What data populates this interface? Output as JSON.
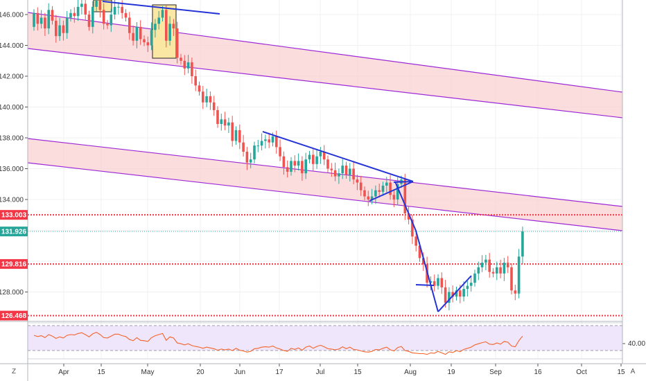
{
  "chart_data": {
    "type": "candlestick",
    "x_tick_labels": [
      "Apr",
      "15",
      "May",
      "20",
      "Jun",
      "17",
      "Jul",
      "15",
      "Aug",
      "19",
      "Sep",
      "16",
      "Oct",
      "15"
    ],
    "y_tick_labels": [
      "146.000",
      "144.000",
      "142.000",
      "140.000",
      "138.000",
      "136.000",
      "134.000",
      "128.000"
    ],
    "ylim": [
      125.95,
      147.0
    ],
    "price_levels": [
      {
        "label": "133.003",
        "value": 133.003,
        "style": "dotted",
        "color": "#f23645"
      },
      {
        "label": "131.926",
        "value": 131.926,
        "style": "current-price",
        "color": "#26a69a"
      },
      {
        "label": "129.816",
        "value": 129.816,
        "style": "dotted",
        "color": "#f23645"
      },
      {
        "label": "126.468",
        "value": 126.468,
        "style": "dotted",
        "color": "#f23645"
      }
    ],
    "colors": {
      "up": "#26a69a",
      "down": "#ef5350",
      "trendline": "#2433d6",
      "channel_line": "#9c27d6",
      "channel_fill": "#fbd1d3",
      "highlight": "#fbe7a4",
      "rsi_line": "#f5632b",
      "rsi_band": "#ede3fb"
    },
    "start_open": 145.2,
    "closes": [
      146.1,
      145.4,
      145.8,
      145.1,
      146.3,
      145.6,
      144.6,
      145.3,
      144.8,
      145.8,
      146.1,
      145.9,
      146.5,
      146.7,
      146.0,
      145.2,
      146.5,
      146.9,
      146.3,
      145.4,
      145.3,
      146.0,
      146.5,
      146.5,
      146.1,
      145.8,
      144.8,
      144.3,
      145.2,
      144.4,
      144.2,
      144.0,
      145.0,
      145.4,
      145.8,
      146.3,
      144.3,
      145.4,
      145.1,
      143.2,
      143.0,
      142.5,
      142.9,
      142.0,
      141.4,
      141.0,
      140.3,
      140.7,
      140.3,
      139.8,
      138.9,
      139.2,
      138.8,
      139.0,
      137.8,
      138.5,
      137.7,
      137.1,
      136.4,
      136.6,
      137.5,
      137.5,
      137.8,
      137.9,
      137.7,
      138.1,
      137.4,
      136.8,
      136.1,
      135.8,
      136.5,
      136.2,
      136.5,
      135.7,
      136.6,
      136.9,
      136.3,
      136.8,
      137.1,
      136.6,
      136.0,
      135.9,
      135.5,
      135.7,
      136.2,
      135.6,
      136.0,
      135.3,
      135.1,
      134.6,
      134.2,
      134.0,
      134.2,
      134.6,
      134.5,
      134.9,
      135.1,
      134.3,
      134.0,
      135.0,
      135.3,
      133.1,
      132.7,
      131.6,
      131.0,
      130.2,
      129.8,
      128.6,
      128.7,
      128.4,
      128.9,
      128.3,
      127.3,
      128.0,
      127.7,
      128.1,
      127.7,
      128.2,
      128.4,
      128.6,
      129.2,
      129.6,
      129.9,
      130.1,
      129.3,
      129.2,
      129.6,
      129.2,
      129.9,
      129.6,
      128.1,
      127.9,
      130.3,
      131.93
    ],
    "rsi": {
      "band_labels": [
        "40.00"
      ],
      "values": [
        58,
        55,
        57,
        52,
        60,
        56,
        50,
        54,
        51,
        58,
        60,
        59,
        63,
        65,
        60,
        54,
        62,
        66,
        60,
        52,
        51,
        56,
        61,
        61,
        57,
        55,
        47,
        44,
        52,
        45,
        44,
        42,
        52,
        57,
        60,
        63,
        45,
        54,
        51,
        38,
        36,
        33,
        36,
        31,
        29,
        27,
        24,
        27,
        25,
        23,
        19,
        22,
        20,
        22,
        18,
        24,
        19,
        17,
        14,
        16,
        23,
        24,
        27,
        28,
        27,
        30,
        25,
        22,
        18,
        16,
        24,
        21,
        25,
        19,
        27,
        30,
        24,
        29,
        32,
        28,
        23,
        22,
        20,
        22,
        28,
        23,
        27,
        21,
        20,
        17,
        15,
        14,
        16,
        21,
        20,
        24,
        27,
        20,
        17,
        26,
        29,
        18,
        16,
        12,
        11,
        10,
        10,
        8,
        12,
        11,
        16,
        12,
        8,
        15,
        13,
        18,
        15,
        21,
        24,
        27,
        33,
        36,
        39,
        41,
        35,
        34,
        38,
        35,
        42,
        40,
        30,
        28,
        44,
        56
      ]
    }
  }
}
